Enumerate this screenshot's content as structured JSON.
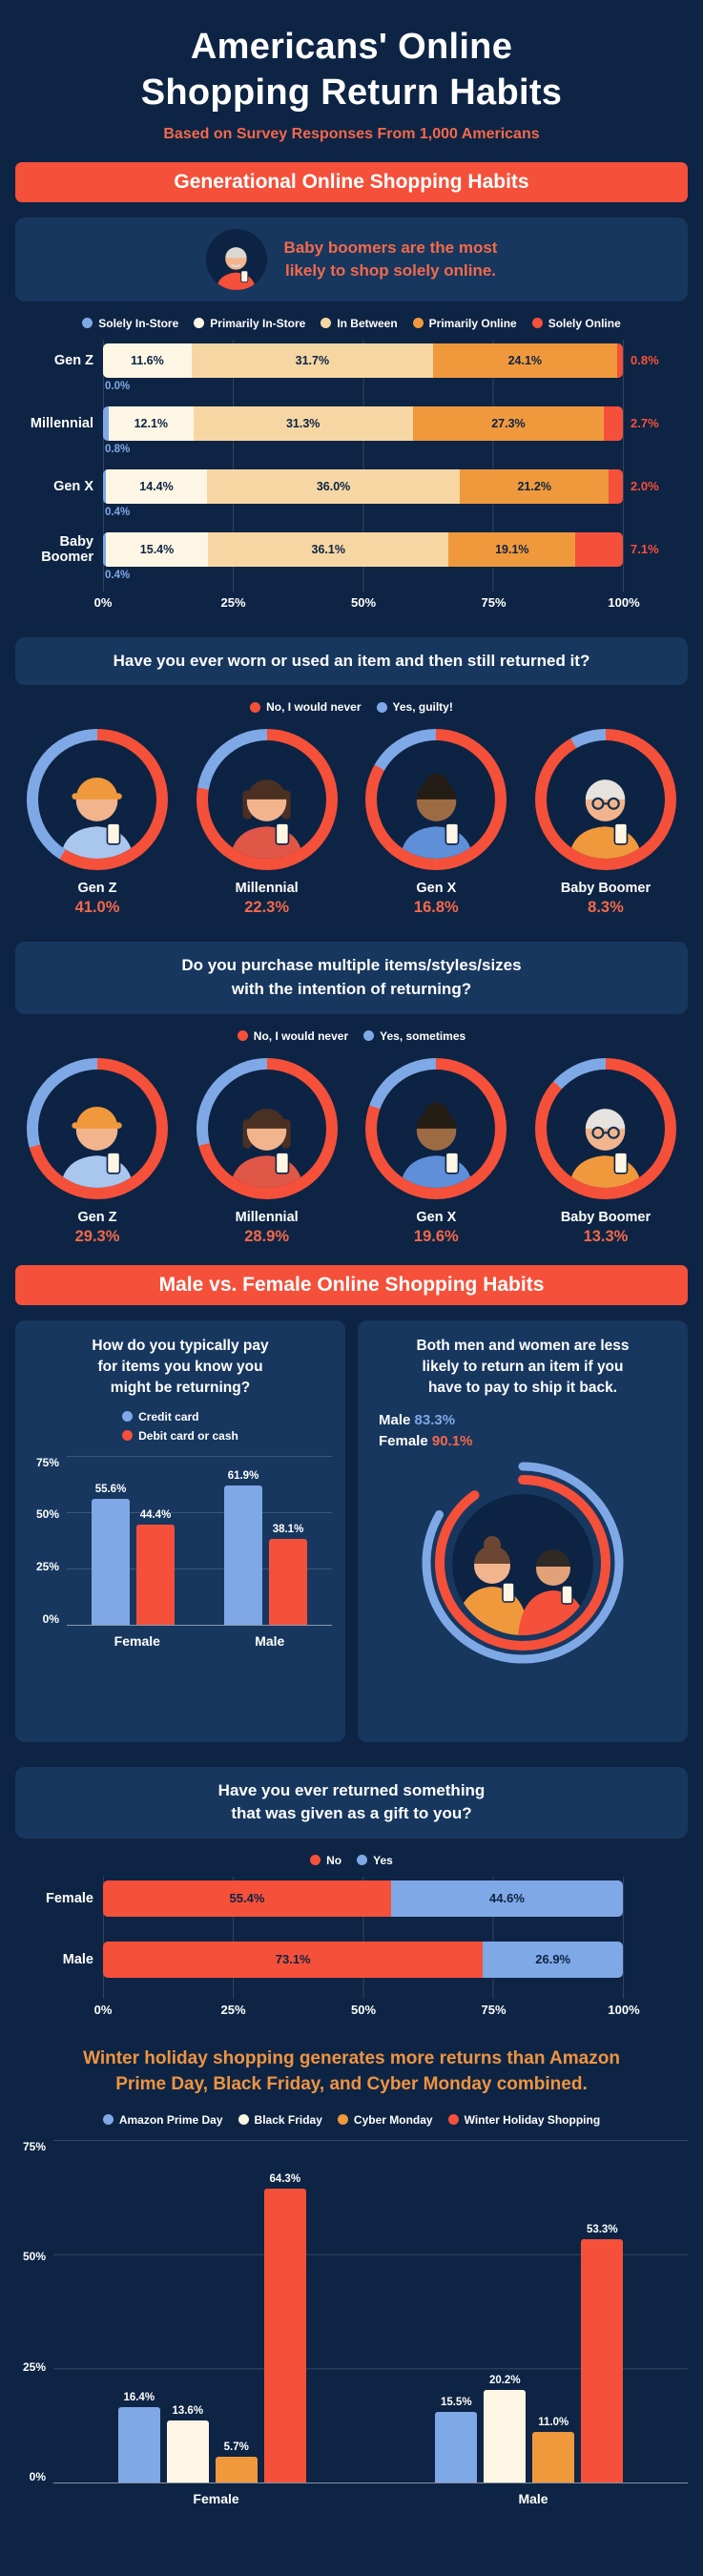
{
  "colors": {
    "bg": "#0e2444",
    "panel": "#17375f",
    "coral": "#f5503a",
    "coral_text": "#f4694a",
    "orange": "#f0993c",
    "tan": "#f6d7a3",
    "cream": "#fdf6e4",
    "blue": "#7fa8e6",
    "navy_text": "#0d2343"
  },
  "header": {
    "title_line1": "Americans' Online",
    "title_line2": "Shopping Return Habits",
    "subtitle": "Based on Survey Responses From 1,000 Americans"
  },
  "generational": {
    "banner": "Generational Online Shopping Habits",
    "callout_line1": "Baby boomers are the most",
    "callout_line2": "likely to shop solely online.",
    "legend": [
      {
        "label": "Solely In-Store",
        "color": "#7fa8e6"
      },
      {
        "label": "Primarily In-Store",
        "color": "#fdf6e4"
      },
      {
        "label": "In Between",
        "color": "#f6d7a3"
      },
      {
        "label": "Primarily Online",
        "color": "#f0993c"
      },
      {
        "label": "Solely Online",
        "color": "#f5503a"
      }
    ],
    "rows": [
      {
        "label": "Gen Z",
        "below": "0.0%",
        "right": "0.8%",
        "segments": [
          {
            "v": 0.0
          },
          {
            "v": 11.6,
            "t": "11.6%"
          },
          {
            "v": 31.7,
            "t": "31.7%"
          },
          {
            "v": 24.1,
            "t": "24.1%"
          },
          {
            "v": 0.8
          }
        ]
      },
      {
        "label": "Millennial",
        "below": "0.8%",
        "right": "2.7%",
        "segments": [
          {
            "v": 0.8
          },
          {
            "v": 12.1,
            "t": "12.1%"
          },
          {
            "v": 31.3,
            "t": "31.3%"
          },
          {
            "v": 27.3,
            "t": "27.3%"
          },
          {
            "v": 2.7
          }
        ]
      },
      {
        "label": "Gen X",
        "below": "0.4%",
        "right": "2.0%",
        "segments": [
          {
            "v": 0.4
          },
          {
            "v": 14.4,
            "t": "14.4%"
          },
          {
            "v": 36.0,
            "t": "36.0%"
          },
          {
            "v": 21.2,
            "t": "21.2%"
          },
          {
            "v": 2.0
          }
        ]
      },
      {
        "label": "Baby Boomer",
        "below": "0.4%",
        "right": "7.1%",
        "segments": [
          {
            "v": 0.4
          },
          {
            "v": 15.4,
            "t": "15.4%"
          },
          {
            "v": 36.1,
            "t": "36.1%"
          },
          {
            "v": 19.1,
            "t": "19.1%"
          },
          {
            "v": 7.1
          }
        ]
      }
    ],
    "x_ticks": [
      "0%",
      "25%",
      "50%",
      "75%",
      "100%"
    ]
  },
  "q_worn": {
    "question": "Have you ever worn or used an item and then still returned it?",
    "legend_no": "No, I would never",
    "legend_yes": "Yes, guilty!",
    "donuts": [
      {
        "name": "Gen Z",
        "pct": 41.0,
        "pct_label": "41.0%"
      },
      {
        "name": "Millennial",
        "pct": 22.3,
        "pct_label": "22.3%"
      },
      {
        "name": "Gen X",
        "pct": 16.8,
        "pct_label": "16.8%"
      },
      {
        "name": "Baby Boomer",
        "pct": 8.3,
        "pct_label": "8.3%"
      }
    ]
  },
  "q_multi": {
    "question_line1": "Do you purchase multiple items/styles/sizes",
    "question_line2": "with the intention of returning?",
    "legend_no": "No, I would never",
    "legend_yes": "Yes, sometimes",
    "donuts": [
      {
        "name": "Gen Z",
        "pct": 29.3,
        "pct_label": "29.3%"
      },
      {
        "name": "Millennial",
        "pct": 28.9,
        "pct_label": "28.9%"
      },
      {
        "name": "Gen X",
        "pct": 19.6,
        "pct_label": "19.6%"
      },
      {
        "name": "Baby Boomer",
        "pct": 13.3,
        "pct_label": "13.3%"
      }
    ]
  },
  "mf": {
    "banner": "Male vs. Female Online Shopping Habits",
    "pay": {
      "title_lines": [
        "How do you typically pay",
        "for items you know you",
        "might be returning?"
      ],
      "legend": [
        {
          "label": "Credit card",
          "color": "#7fa8e6"
        },
        {
          "label": "Debit card or cash",
          "color": "#f5503a"
        }
      ],
      "y_ticks": [
        "75%",
        "50%",
        "25%",
        "0%"
      ],
      "groups": [
        {
          "label": "Female",
          "bars": [
            {
              "v": 55.6,
              "t": "55.6%"
            },
            {
              "v": 44.4,
              "t": "44.4%"
            }
          ]
        },
        {
          "label": "Male",
          "bars": [
            {
              "v": 61.9,
              "t": "61.9%"
            },
            {
              "v": 38.1,
              "t": "38.1%"
            }
          ]
        }
      ]
    },
    "ship": {
      "title_lines": [
        "Both men and women are less",
        "likely to return an item if you",
        "have to pay to ship it back."
      ],
      "male_label": "Male",
      "male_pct": 83.3,
      "male_pct_label": "83.3%",
      "female_label": "Female",
      "female_pct": 90.1,
      "female_pct_label": "90.1%"
    }
  },
  "gift": {
    "question_line1": "Have you ever returned something",
    "question_line2": "that was given as a gift to you?",
    "legend_no": "No",
    "legend_yes": "Yes",
    "rows": [
      {
        "label": "Female",
        "no": {
          "v": 55.4,
          "t": "55.4%"
        },
        "yes": {
          "v": 44.6,
          "t": "44.6%"
        }
      },
      {
        "label": "Male",
        "no": {
          "v": 73.1,
          "t": "73.1%"
        },
        "yes": {
          "v": 26.9,
          "t": "26.9%"
        }
      }
    ],
    "x_ticks": [
      "0%",
      "25%",
      "50%",
      "75%",
      "100%"
    ]
  },
  "holiday": {
    "title_line1": "Winter holiday shopping generates more returns than Amazon",
    "title_line2": "Prime Day, Black Friday, and Cyber Monday combined.",
    "legend": [
      {
        "label": "Amazon Prime Day",
        "color": "#7fa8e6"
      },
      {
        "label": "Black Friday",
        "color": "#fdf6e4"
      },
      {
        "label": "Cyber Monday",
        "color": "#f0993c"
      },
      {
        "label": "Winter Holiday Shopping",
        "color": "#f5503a"
      }
    ],
    "y_ticks": [
      "75%",
      "50%",
      "25%",
      "0%"
    ],
    "groups": [
      {
        "label": "Female",
        "bars": [
          {
            "v": 16.4,
            "t": "16.4%"
          },
          {
            "v": 13.6,
            "t": "13.6%"
          },
          {
            "v": 5.7,
            "t": "5.7%"
          },
          {
            "v": 64.3,
            "t": "64.3%"
          }
        ]
      },
      {
        "label": "Male",
        "bars": [
          {
            "v": 15.5,
            "t": "15.5%"
          },
          {
            "v": 20.2,
            "t": "20.2%"
          },
          {
            "v": 11.0,
            "t": "11.0%"
          },
          {
            "v": 53.3,
            "t": "53.3%"
          }
        ]
      }
    ]
  },
  "chart_data": [
    {
      "type": "bar",
      "stacked": true,
      "orientation": "horizontal",
      "title": "Generational Online Shopping Habits",
      "categories": [
        "Gen Z",
        "Millennial",
        "Gen X",
        "Baby Boomer"
      ],
      "series": [
        {
          "name": "Solely In-Store",
          "values": [
            0.0,
            0.8,
            0.4,
            0.4
          ]
        },
        {
          "name": "Primarily In-Store",
          "values": [
            11.6,
            12.1,
            14.4,
            15.4
          ]
        },
        {
          "name": "In Between",
          "values": [
            31.7,
            31.3,
            36.0,
            36.1
          ]
        },
        {
          "name": "Primarily Online",
          "values": [
            24.1,
            27.3,
            21.2,
            19.1
          ]
        },
        {
          "name": "Solely Online",
          "values": [
            0.8,
            2.7,
            2.0,
            7.1
          ]
        }
      ],
      "xlim": [
        0,
        100
      ],
      "x_ticks": [
        "0%",
        "25%",
        "50%",
        "75%",
        "100%"
      ]
    },
    {
      "type": "pie",
      "title": "Have you ever worn or used an item and then still returned it? (% Yes, guilty!)",
      "categories": [
        "Gen Z",
        "Millennial",
        "Gen X",
        "Baby Boomer"
      ],
      "values": [
        41.0,
        22.3,
        16.8,
        8.3
      ],
      "legend": [
        "No, I would never",
        "Yes, guilty!"
      ]
    },
    {
      "type": "pie",
      "title": "Do you purchase multiple items/styles/sizes with the intention of returning? (% Yes, sometimes)",
      "categories": [
        "Gen Z",
        "Millennial",
        "Gen X",
        "Baby Boomer"
      ],
      "values": [
        29.3,
        28.9,
        19.6,
        13.3
      ],
      "legend": [
        "No, I would never",
        "Yes, sometimes"
      ]
    },
    {
      "type": "bar",
      "title": "How do you typically pay for items you know you might be returning?",
      "categories": [
        "Female",
        "Male"
      ],
      "series": [
        {
          "name": "Credit card",
          "values": [
            55.6,
            61.9
          ]
        },
        {
          "name": "Debit card or cash",
          "values": [
            44.4,
            38.1
          ]
        }
      ],
      "ylim": [
        0,
        75
      ]
    },
    {
      "type": "pie",
      "title": "Less likely to return an item if you have to pay to ship it back",
      "categories": [
        "Male",
        "Female"
      ],
      "values": [
        83.3,
        90.1
      ]
    },
    {
      "type": "bar",
      "stacked": true,
      "orientation": "horizontal",
      "title": "Have you ever returned something that was given as a gift to you?",
      "categories": [
        "Female",
        "Male"
      ],
      "series": [
        {
          "name": "No",
          "values": [
            55.4,
            73.1
          ]
        },
        {
          "name": "Yes",
          "values": [
            44.6,
            26.9
          ]
        }
      ],
      "xlim": [
        0,
        100
      ],
      "x_ticks": [
        "0%",
        "25%",
        "50%",
        "75%",
        "100%"
      ]
    },
    {
      "type": "bar",
      "title": "Winter holiday shopping generates more returns than Amazon Prime Day, Black Friday, and Cyber Monday combined.",
      "categories": [
        "Female",
        "Male"
      ],
      "series": [
        {
          "name": "Amazon Prime Day",
          "values": [
            16.4,
            15.5
          ]
        },
        {
          "name": "Black Friday",
          "values": [
            13.6,
            20.2
          ]
        },
        {
          "name": "Cyber Monday",
          "values": [
            5.7,
            11.0
          ]
        },
        {
          "name": "Winter Holiday Shopping",
          "values": [
            64.3,
            53.3
          ]
        }
      ],
      "ylim": [
        0,
        75
      ]
    }
  ]
}
